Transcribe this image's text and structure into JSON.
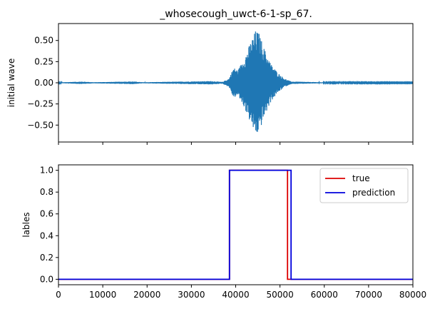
{
  "chart_data": [
    {
      "type": "line",
      "title": "_whosecough_uwct-6-1-sp_67.",
      "xlabel": "",
      "ylabel": "initial wave",
      "xlim": [
        0,
        80000
      ],
      "ylim": [
        -0.7,
        0.7
      ],
      "x_ticks": [
        0,
        10000,
        20000,
        30000,
        40000,
        50000,
        60000,
        70000,
        80000
      ],
      "x_tick_labels_shown": false,
      "y_ticks": [
        -0.5,
        -0.25,
        0.0,
        0.25,
        0.5
      ],
      "y_tick_labels": [
        "−0.50",
        "−0.25",
        "0.00",
        "0.25",
        "0.50"
      ],
      "grid": false,
      "series": [
        {
          "color": "#1f77b4",
          "envelope_points": [
            {
              "x": 0,
              "amp": 0.004
            },
            {
              "x": 1000,
              "amp": 0.006
            },
            {
              "x": 5200,
              "amp": 0.014
            },
            {
              "x": 8000,
              "amp": 0.006
            },
            {
              "x": 16800,
              "amp": 0.016
            },
            {
              "x": 19000,
              "amp": 0.006
            },
            {
              "x": 34500,
              "amp": 0.02
            },
            {
              "x": 37000,
              "amp": 0.01
            },
            {
              "x": 38500,
              "amp": 0.05
            },
            {
              "x": 39500,
              "amp": 0.18
            },
            {
              "x": 40500,
              "amp": 0.15
            },
            {
              "x": 42000,
              "amp": 0.3
            },
            {
              "x": 43500,
              "amp": 0.5
            },
            {
              "x": 44500,
              "amp": 0.62
            },
            {
              "x": 45200,
              "amp": 0.6
            },
            {
              "x": 46500,
              "amp": 0.4
            },
            {
              "x": 48000,
              "amp": 0.22
            },
            {
              "x": 49500,
              "amp": 0.12
            },
            {
              "x": 51000,
              "amp": 0.05
            },
            {
              "x": 52500,
              "amp": 0.015
            },
            {
              "x": 60000,
              "amp": 0.005
            },
            {
              "x": 80000,
              "amp": 0.004
            }
          ]
        }
      ]
    },
    {
      "type": "line",
      "title": "",
      "xlabel": "",
      "ylabel": "lables",
      "xlim": [
        0,
        80000
      ],
      "ylim": [
        -0.05,
        1.05
      ],
      "x_ticks": [
        0,
        10000,
        20000,
        30000,
        40000,
        50000,
        60000,
        70000,
        80000
      ],
      "x_tick_labels": [
        "0",
        "10000",
        "20000",
        "30000",
        "40000",
        "50000",
        "60000",
        "70000",
        "80000"
      ],
      "y_ticks": [
        0.0,
        0.2,
        0.4,
        0.6,
        0.8,
        1.0
      ],
      "y_tick_labels": [
        "0.0",
        "0.2",
        "0.4",
        "0.6",
        "0.8",
        "1.0"
      ],
      "grid": false,
      "legend": {
        "placement": "top-right"
      },
      "series": [
        {
          "name": "true",
          "color": "#dd0000",
          "x": [
            0,
            38600,
            38600,
            51700,
            51700,
            80000
          ],
          "y": [
            0,
            0,
            1,
            1,
            0,
            0
          ]
        },
        {
          "name": "prediction",
          "color": "#0000dd",
          "x": [
            0,
            38600,
            38600,
            52500,
            52500,
            80000
          ],
          "y": [
            0,
            0,
            1,
            1,
            0,
            0
          ]
        }
      ]
    }
  ]
}
